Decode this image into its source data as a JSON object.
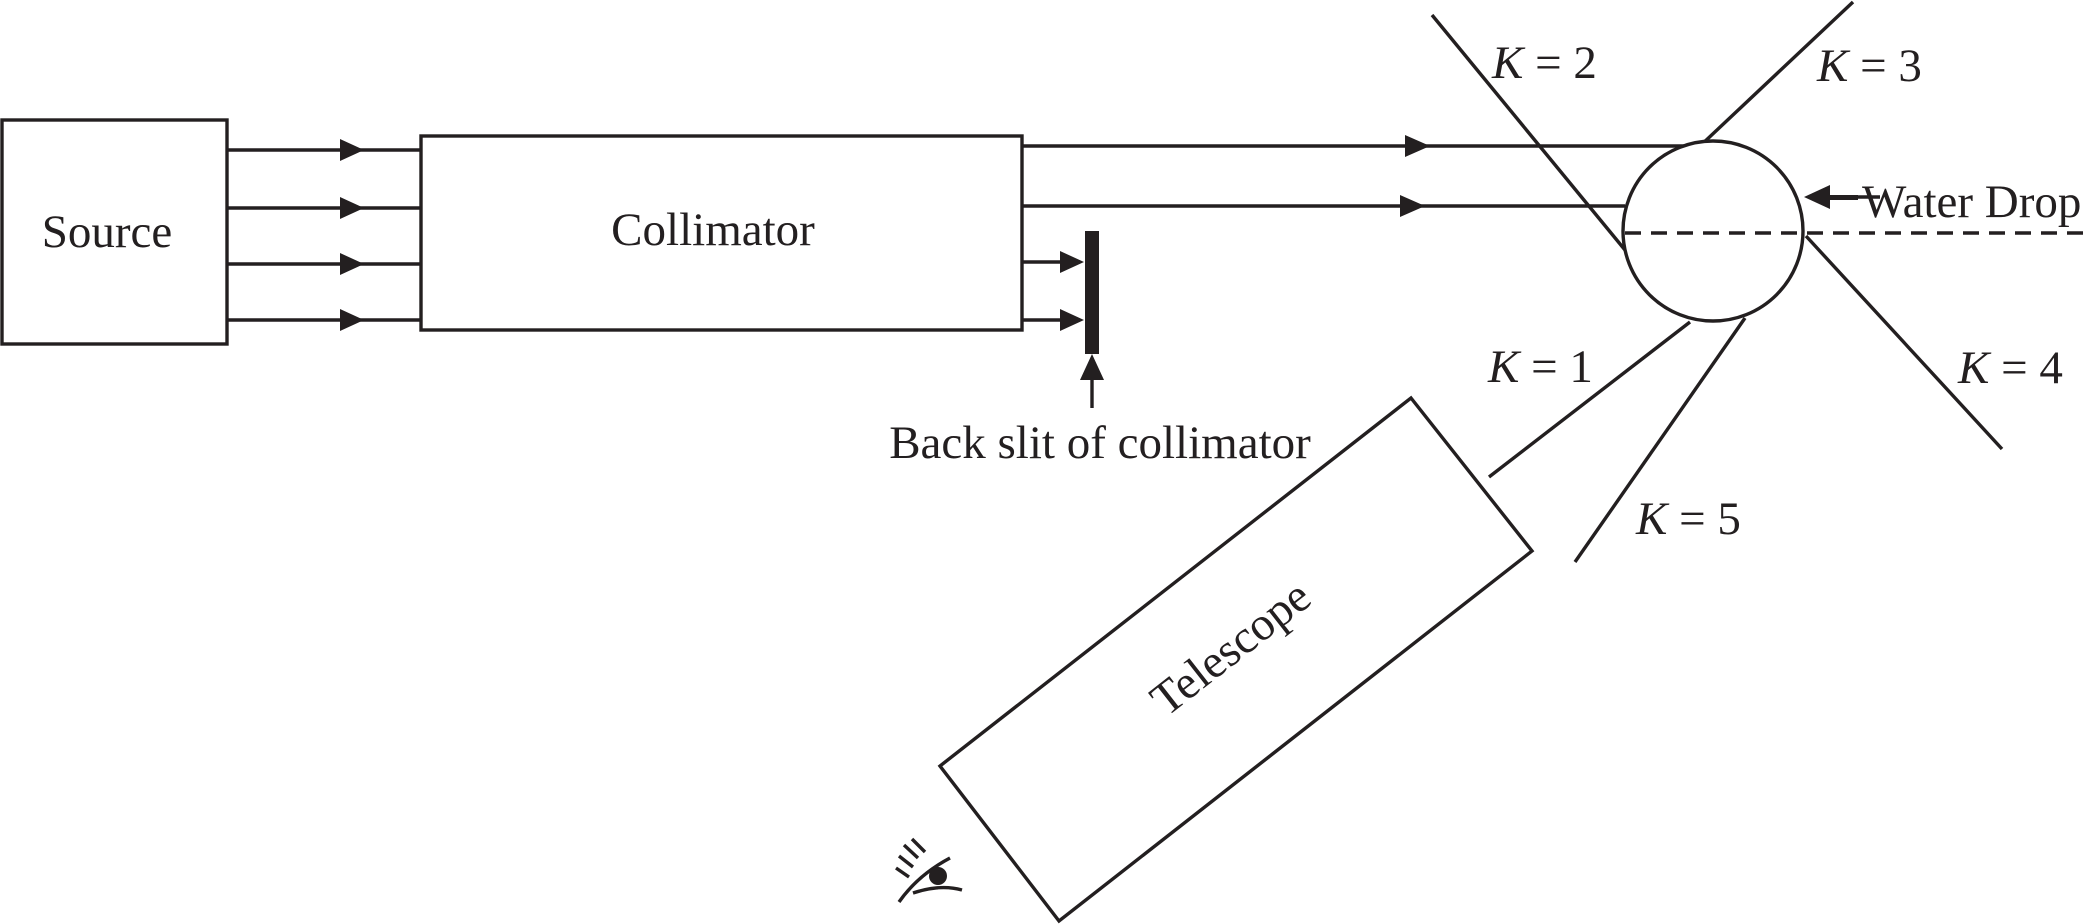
{
  "labels": {
    "source": "Source",
    "collimator": "Collimator",
    "telescope": "Telescope",
    "back_slit": "Back slit of collimator",
    "water_drop": "Water Drop"
  },
  "orders": [
    {
      "symbol": "K",
      "rest": " = 1"
    },
    {
      "symbol": "K",
      "rest": " = 2"
    },
    {
      "symbol": "K",
      "rest": " = 3"
    },
    {
      "symbol": "K",
      "rest": " = 4"
    },
    {
      "symbol": "K",
      "rest": " = 5"
    }
  ],
  "icons": {
    "observer": "eye-icon"
  },
  "colors": {
    "ink": "#231f20",
    "background": "#ffffff"
  }
}
